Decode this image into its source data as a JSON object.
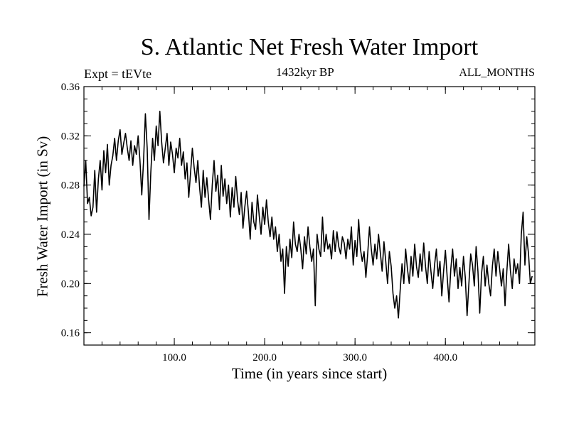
{
  "chart_data": {
    "type": "line",
    "title": "S. Atlantic Net Fresh Water Import",
    "subtitle_left": "Expt = tEVte",
    "subtitle_center": "1432kyr BP",
    "subtitle_right": "ALL_MONTHS",
    "xlabel": "Time (in years since start)",
    "ylabel": "Fresh Water Import (in Sv)",
    "xlim": [
      0,
      499
    ],
    "ylim": [
      0.15,
      0.36
    ],
    "x_ticks": [
      100,
      200,
      300,
      400
    ],
    "x_tick_labels": [
      "100.0",
      "200.0",
      "300.0",
      "400.0"
    ],
    "y_ticks": [
      0.16,
      0.2,
      0.24,
      0.28,
      0.32,
      0.36
    ],
    "y_tick_labels": [
      "0.16",
      "0.20",
      "0.24",
      "0.28",
      "0.32",
      "0.36"
    ],
    "grid": false,
    "series": [
      {
        "name": "fresh water import",
        "x_start": 0,
        "x_step": 2,
        "values": [
          0.279,
          0.3,
          0.265,
          0.27,
          0.255,
          0.262,
          0.292,
          0.258,
          0.285,
          0.3,
          0.276,
          0.308,
          0.29,
          0.313,
          0.28,
          0.296,
          0.304,
          0.318,
          0.3,
          0.316,
          0.325,
          0.305,
          0.314,
          0.322,
          0.31,
          0.3,
          0.316,
          0.296,
          0.312,
          0.305,
          0.32,
          0.3,
          0.272,
          0.3,
          0.338,
          0.31,
          0.252,
          0.29,
          0.318,
          0.3,
          0.328,
          0.312,
          0.34,
          0.315,
          0.298,
          0.31,
          0.322,
          0.296,
          0.315,
          0.305,
          0.29,
          0.31,
          0.302,
          0.318,
          0.296,
          0.307,
          0.285,
          0.298,
          0.27,
          0.29,
          0.31,
          0.294,
          0.282,
          0.3,
          0.278,
          0.262,
          0.292,
          0.27,
          0.286,
          0.268,
          0.252,
          0.28,
          0.3,
          0.275,
          0.288,
          0.26,
          0.296,
          0.271,
          0.285,
          0.265,
          0.28,
          0.254,
          0.278,
          0.262,
          0.287,
          0.268,
          0.256,
          0.274,
          0.245,
          0.262,
          0.275,
          0.258,
          0.236,
          0.266,
          0.25,
          0.244,
          0.272,
          0.255,
          0.24,
          0.262,
          0.248,
          0.268,
          0.25,
          0.238,
          0.254,
          0.236,
          0.246,
          0.226,
          0.24,
          0.218,
          0.228,
          0.192,
          0.23,
          0.214,
          0.236,
          0.221,
          0.25,
          0.232,
          0.226,
          0.24,
          0.228,
          0.212,
          0.238,
          0.224,
          0.246,
          0.23,
          0.218,
          0.228,
          0.182,
          0.24,
          0.228,
          0.222,
          0.254,
          0.226,
          0.24,
          0.228,
          0.232,
          0.22,
          0.243,
          0.226,
          0.242,
          0.23,
          0.224,
          0.238,
          0.233,
          0.22,
          0.236,
          0.228,
          0.246,
          0.215,
          0.235,
          0.222,
          0.252,
          0.228,
          0.218,
          0.226,
          0.205,
          0.224,
          0.246,
          0.228,
          0.215,
          0.232,
          0.22,
          0.24,
          0.225,
          0.21,
          0.234,
          0.218,
          0.2,
          0.226,
          0.214,
          0.192,
          0.18,
          0.19,
          0.172,
          0.195,
          0.216,
          0.2,
          0.228,
          0.212,
          0.2,
          0.222,
          0.206,
          0.232,
          0.214,
          0.205,
          0.224,
          0.21,
          0.233,
          0.214,
          0.2,
          0.226,
          0.21,
          0.196,
          0.215,
          0.228,
          0.206,
          0.218,
          0.19,
          0.21,
          0.227,
          0.205,
          0.185,
          0.212,
          0.228,
          0.206,
          0.22,
          0.196,
          0.213,
          0.198,
          0.222,
          0.205,
          0.174,
          0.2,
          0.224,
          0.215,
          0.198,
          0.23,
          0.21,
          0.176,
          0.208,
          0.222,
          0.198,
          0.215,
          0.2,
          0.19,
          0.214,
          0.228,
          0.206,
          0.226,
          0.212,
          0.198,
          0.212,
          0.182,
          0.21,
          0.232,
          0.21,
          0.196,
          0.22,
          0.208,
          0.216,
          0.2,
          0.24,
          0.258,
          0.215,
          0.238,
          0.224,
          0.2,
          0.206
        ]
      }
    ]
  }
}
